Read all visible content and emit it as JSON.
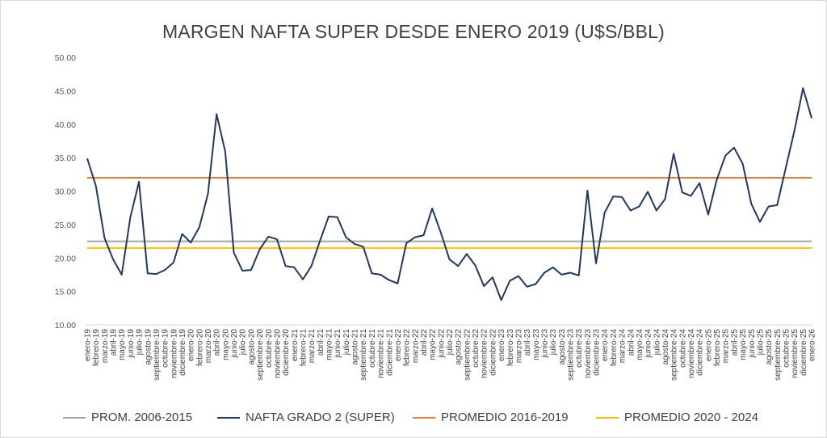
{
  "chart_data": {
    "type": "line",
    "title": "MARGEN NAFTA SUPER DESDE ENERO 2019 (U$S/BBL)",
    "xlabel": "",
    "ylabel": "",
    "ylim": [
      10,
      50
    ],
    "ytick_labels": [
      "10.00",
      "15.00",
      "20.00",
      "25.00",
      "30.00",
      "35.00",
      "40.00",
      "45.00",
      "50.00"
    ],
    "grid": false,
    "legend_position": "bottom",
    "categories": [
      "enero-19",
      "febrero-19",
      "marzo-19",
      "abril-19",
      "mayo-19",
      "junio-19",
      "julio-19",
      "agosto-19",
      "septiembre-19",
      "octubre-19",
      "noviembre-19",
      "diciembre-19",
      "enero-20",
      "febrero-20",
      "marzo-20",
      "abril-20",
      "mayo-20",
      "junio-20",
      "julio-20",
      "agosto-20",
      "septiembre-20",
      "octubre-20",
      "noviembre-20",
      "diciembre-20",
      "enero-21",
      "febrero-21",
      "marzo-21",
      "abril-21",
      "mayo-21",
      "junio-21",
      "julio-21",
      "agosto-21",
      "septiembre-21",
      "octubre-21",
      "noviembre-21",
      "diciembre-21",
      "enero-22",
      "febrero-22",
      "marzo-22",
      "abril-22",
      "mayo-22",
      "junio-22",
      "julio-22",
      "agosto-22",
      "septiembre-22",
      "octubre-22",
      "noviembre-22",
      "diciembre-22",
      "enero-23",
      "febrero-23",
      "marzo-23",
      "abril-23",
      "mayo-23",
      "junio-23",
      "julio-23",
      "agosto-23",
      "septiembre-23",
      "octubre-23",
      "noviembre-23",
      "diciembre-23",
      "enero-24",
      "febrero-24",
      "marzo-24",
      "abril-24",
      "mayo-24",
      "junio-24",
      "julio-24",
      "agosto-24",
      "septiembre-24",
      "octubre-24",
      "noviembre-24",
      "diciembre-24",
      "enero-25",
      "febrero-25",
      "marzo-25",
      "abril-25",
      "mayo-25",
      "junio-25",
      "julio-25",
      "agosto-25",
      "septiembre-25",
      "octubre-25",
      "noviembre-25",
      "diciembre-25",
      "enero-26"
    ],
    "series": [
      {
        "name": "NAFTA GRADO 2 (SUPER)",
        "color": "#1f3864",
        "kind": "line",
        "values": [
          34.9,
          30.8,
          23.0,
          19.8,
          17.5,
          26.1,
          31.4,
          17.7,
          17.6,
          18.2,
          19.3,
          23.6,
          22.3,
          24.6,
          29.6,
          41.5,
          35.9,
          20.8,
          18.1,
          18.2,
          21.3,
          23.2,
          22.8,
          18.8,
          18.6,
          16.8,
          18.8,
          22.6,
          26.2,
          26.1,
          23.1,
          22.1,
          21.7,
          17.7,
          17.5,
          16.7,
          16.2,
          22.2,
          23.1,
          23.4,
          27.4,
          23.8,
          19.8,
          18.8,
          20.6,
          18.9,
          15.8,
          17.1,
          13.7,
          16.6,
          17.3,
          15.7,
          16.1,
          17.8,
          18.6,
          17.5,
          17.8,
          17.4,
          30.1,
          19.2,
          26.8,
          29.2,
          29.1,
          27.1,
          27.7,
          29.9,
          27.1,
          28.8,
          35.6,
          29.8,
          29.3,
          31.2,
          26.5,
          31.7,
          35.3,
          36.5,
          34.1,
          28.1,
          25.4,
          27.7,
          27.9,
          33.5,
          39.0,
          45.4,
          40.9
        ]
      },
      {
        "name": "PROM. 2006-2015",
        "color": "#a5a5a5",
        "kind": "constant",
        "value": 22.5
      },
      {
        "name": "PROMEDIO 2016-2019",
        "color": "#ed7d31",
        "kind": "constant",
        "value": 32.0
      },
      {
        "name": "PROMEDIO 2020 - 2024",
        "color": "#ffc000",
        "kind": "constant",
        "value": 21.5
      }
    ]
  },
  "legend": [
    {
      "label": "PROM. 2006-2015",
      "color": "#a5a5a5"
    },
    {
      "label": "NAFTA GRADO 2 (SUPER)",
      "color": "#1f3864"
    },
    {
      "label": "PROMEDIO 2016-2019",
      "color": "#ed7d31"
    },
    {
      "label": "PROMEDIO 2020 - 2024",
      "color": "#ffc000"
    }
  ]
}
